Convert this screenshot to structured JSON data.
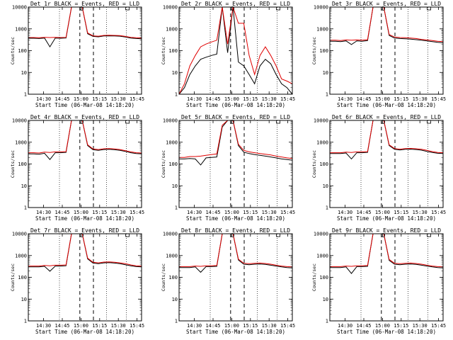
{
  "chart_data": [
    {
      "type": "line",
      "title": "Det 1r BLACK = Events, RED = LLD",
      "ylabel": "Counts/sec",
      "xlabel": "Start Time (06-Mar-08 14:18:20)",
      "x_ticks": [
        "14:30",
        "14:45",
        "15:00",
        "15:15",
        "15:30",
        "15:45"
      ],
      "y_ticks": [
        "1",
        "10",
        "100",
        "1000",
        "10000"
      ],
      "y_scale": "log",
      "ylim": [
        1,
        10000
      ],
      "series": [
        {
          "color": "#000000",
          "values": [
            370,
            370,
            360,
            380,
            150,
            380,
            370,
            380,
            12000,
            12000,
            12000,
            600,
            450,
            430,
            470,
            480,
            470,
            460,
            420,
            380,
            360,
            350
          ]
        },
        {
          "color": "#e00000",
          "values": [
            400,
            400,
            390,
            410,
            400,
            410,
            400,
            410,
            12000,
            12000,
            12000,
            650,
            480,
            460,
            500,
            510,
            500,
            490,
            450,
            410,
            390,
            380
          ]
        }
      ]
    },
    {
      "type": "line",
      "title": "Det 2r BLACK = Events, RED = LLD",
      "ylabel": "Counts/sec",
      "xlabel": "Start Time (06-Mar-08 14:18:20)",
      "x_ticks": [
        "14:30",
        "14:45",
        "15:00",
        "15:15",
        "15:30",
        "15:45"
      ],
      "y_ticks": [
        "1",
        "10",
        "100",
        "1000",
        "10000"
      ],
      "y_scale": "log",
      "ylim": [
        1,
        10000
      ],
      "series": [
        {
          "color": "#000000",
          "values": [
            1,
            2,
            8,
            20,
            40,
            50,
            60,
            70,
            12000,
            80,
            12000,
            30,
            20,
            8,
            3,
            20,
            40,
            25,
            8,
            3,
            2,
            1
          ]
        },
        {
          "color": "#e00000",
          "values": [
            1,
            3,
            20,
            60,
            150,
            200,
            250,
            300,
            12000,
            200,
            12000,
            1800,
            1800,
            60,
            8,
            60,
            150,
            60,
            20,
            5,
            4,
            3
          ]
        }
      ]
    },
    {
      "type": "line",
      "title": "Det 3r BLACK = Events, RED = LLD",
      "ylabel": "Counts/sec",
      "xlabel": "Start Time (06-Mar-08 14:18:20)",
      "x_ticks": [
        "14:30",
        "14:45",
        "15:00",
        "15:15",
        "15:30",
        "15:45"
      ],
      "y_ticks": [
        "1",
        "10",
        "100",
        "1000",
        "10000"
      ],
      "y_scale": "log",
      "ylim": [
        1,
        10000
      ],
      "series": [
        {
          "color": "#000000",
          "values": [
            270,
            270,
            260,
            280,
            190,
            280,
            270,
            290,
            12000,
            12000,
            12000,
            500,
            380,
            360,
            350,
            340,
            320,
            300,
            280,
            260,
            240,
            230
          ]
        },
        {
          "color": "#e00000",
          "values": [
            300,
            300,
            290,
            310,
            300,
            310,
            300,
            320,
            12000,
            12000,
            12000,
            550,
            420,
            400,
            390,
            380,
            360,
            330,
            310,
            290,
            270,
            260
          ]
        }
      ]
    },
    {
      "type": "line",
      "title": "Det 4r BLACK = Events, RED = LLD",
      "ylabel": "Counts/sec",
      "xlabel": "Start Time (06-Mar-08 14:18:20)",
      "x_ticks": [
        "14:30",
        "14:45",
        "15:00",
        "15:15",
        "15:30",
        "15:45"
      ],
      "y_ticks": [
        "1",
        "10",
        "100",
        "1000",
        "10000"
      ],
      "y_scale": "log",
      "ylim": [
        1,
        10000
      ],
      "series": [
        {
          "color": "#000000",
          "values": [
            290,
            290,
            280,
            310,
            160,
            330,
            330,
            340,
            12000,
            12000,
            12000,
            700,
            450,
            420,
            460,
            470,
            450,
            420,
            380,
            330,
            300,
            290
          ]
        },
        {
          "color": "#e00000",
          "values": [
            330,
            330,
            320,
            350,
            340,
            360,
            360,
            370,
            12000,
            12000,
            12000,
            760,
            490,
            460,
            500,
            510,
            490,
            460,
            410,
            360,
            330,
            320
          ]
        }
      ]
    },
    {
      "type": "line",
      "title": "Det 5r BLACK = Events, RED = LLD",
      "ylabel": "Counts/sec",
      "xlabel": "Start Time (06-Mar-08 14:18:20)",
      "x_ticks": [
        "14:30",
        "14:45",
        "15:00",
        "15:15",
        "15:30",
        "15:45"
      ],
      "y_ticks": [
        "1",
        "10",
        "100",
        "1000",
        "10000"
      ],
      "y_scale": "log",
      "ylim": [
        1,
        10000
      ],
      "series": [
        {
          "color": "#000000",
          "values": [
            170,
            170,
            180,
            170,
            90,
            190,
            200,
            210,
            5000,
            10000,
            12000,
            700,
            350,
            300,
            270,
            250,
            230,
            210,
            190,
            170,
            160,
            150
          ]
        },
        {
          "color": "#e00000",
          "values": [
            200,
            200,
            220,
            220,
            230,
            250,
            270,
            290,
            6000,
            11000,
            12000,
            800,
            420,
            360,
            330,
            300,
            280,
            260,
            230,
            210,
            190,
            180
          ]
        }
      ]
    },
    {
      "type": "line",
      "title": "Det 6r BLACK = Events, RED = LLD",
      "ylabel": "Counts/sec",
      "xlabel": "Start Time (06-Mar-08 14:18:20)",
      "x_ticks": [
        "14:30",
        "14:45",
        "15:00",
        "15:15",
        "15:30",
        "15:45"
      ],
      "y_ticks": [
        "1",
        "10",
        "100",
        "1000",
        "10000"
      ],
      "y_scale": "log",
      "ylim": [
        1,
        10000
      ],
      "series": [
        {
          "color": "#000000",
          "values": [
            300,
            300,
            300,
            320,
            170,
            330,
            330,
            340,
            12000,
            12000,
            12000,
            700,
            470,
            440,
            470,
            480,
            460,
            430,
            380,
            340,
            310,
            300
          ]
        },
        {
          "color": "#e00000",
          "values": [
            330,
            330,
            330,
            350,
            340,
            360,
            360,
            370,
            12000,
            12000,
            12000,
            760,
            510,
            480,
            510,
            520,
            500,
            470,
            420,
            370,
            340,
            330
          ]
        }
      ]
    },
    {
      "type": "line",
      "title": "Det 7r BLACK = Events, RED = LLD",
      "ylabel": "Counts/sec",
      "xlabel": "Start Time (06-Mar-08 14:18:20)",
      "x_ticks": [
        "14:30",
        "14:45",
        "15:00",
        "15:15",
        "15:30",
        "15:45"
      ],
      "y_ticks": [
        "1",
        "10",
        "100",
        "1000",
        "10000"
      ],
      "y_scale": "log",
      "ylim": [
        1,
        10000
      ],
      "series": [
        {
          "color": "#000000",
          "values": [
            300,
            300,
            300,
            320,
            190,
            330,
            330,
            340,
            12000,
            12000,
            12000,
            700,
            450,
            420,
            460,
            470,
            450,
            420,
            380,
            340,
            310,
            300
          ]
        },
        {
          "color": "#e00000",
          "values": [
            330,
            330,
            330,
            350,
            340,
            360,
            360,
            370,
            12000,
            12000,
            12000,
            760,
            490,
            460,
            500,
            510,
            490,
            460,
            420,
            370,
            340,
            330
          ]
        }
      ]
    },
    {
      "type": "line",
      "title": "Det 8r BLACK = Events, RED = LLD",
      "ylabel": "Counts/sec",
      "xlabel": "Start Time (06-Mar-08 14:18:20)",
      "x_ticks": [
        "14:30",
        "14:45",
        "15:00",
        "15:15",
        "15:30",
        "15:45"
      ],
      "y_ticks": [
        "1",
        "10",
        "100",
        "1000",
        "10000"
      ],
      "y_scale": "log",
      "ylim": [
        1,
        10000
      ],
      "series": [
        {
          "color": "#000000",
          "values": [
            280,
            280,
            280,
            300,
            170,
            310,
            310,
            320,
            12000,
            12000,
            12000,
            620,
            400,
            380,
            400,
            410,
            390,
            360,
            330,
            300,
            280,
            270
          ]
        },
        {
          "color": "#e00000",
          "values": [
            310,
            310,
            310,
            330,
            320,
            340,
            340,
            350,
            12000,
            12000,
            12000,
            680,
            440,
            420,
            440,
            450,
            430,
            400,
            360,
            330,
            310,
            300
          ]
        }
      ]
    },
    {
      "type": "line",
      "title": "Det 9r BLACK = Events, RED = LLD",
      "ylabel": "Counts/sec",
      "xlabel": "Start Time (06-Mar-08 14:18:20)",
      "x_ticks": [
        "14:30",
        "14:45",
        "15:00",
        "15:15",
        "15:30",
        "15:45"
      ],
      "y_ticks": [
        "1",
        "10",
        "100",
        "1000",
        "10000"
      ],
      "y_scale": "log",
      "ylim": [
        1,
        10000
      ],
      "series": [
        {
          "color": "#000000",
          "values": [
            280,
            280,
            280,
            300,
            150,
            310,
            310,
            320,
            12000,
            12000,
            12000,
            600,
            400,
            380,
            400,
            410,
            390,
            360,
            330,
            300,
            280,
            270
          ]
        },
        {
          "color": "#e00000",
          "values": [
            310,
            310,
            310,
            330,
            320,
            340,
            340,
            350,
            12000,
            12000,
            12000,
            660,
            440,
            420,
            440,
            450,
            430,
            400,
            360,
            330,
            310,
            300
          ]
        }
      ]
    }
  ]
}
